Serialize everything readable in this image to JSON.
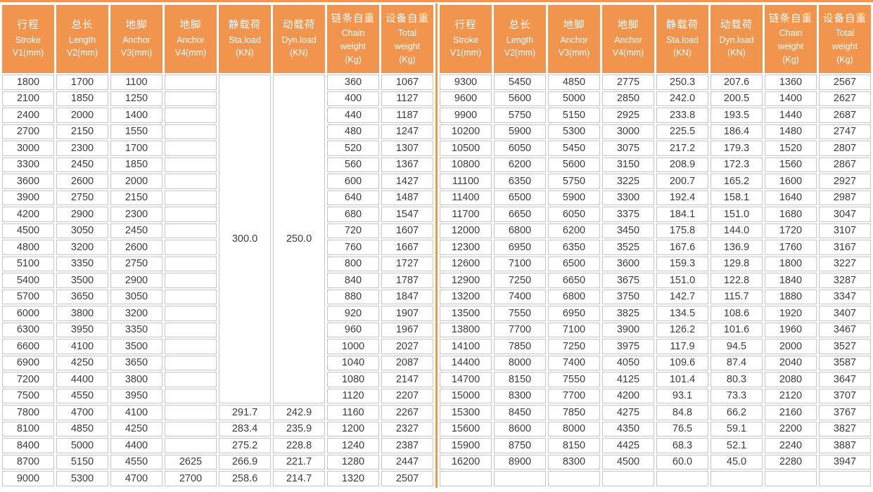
{
  "page": {
    "description": "Hoist equipment specification table, two side-by-side halves with identical column sets"
  },
  "colors": {
    "header_bg": "#F0944E",
    "divider": "#F19A47",
    "top_strip": "#F0944E",
    "cell_border": "#c4c4c4",
    "body_text": "#3d3a39",
    "header_text": "#ffffff",
    "page_bg": "#ffffff"
  },
  "columns": [
    {
      "lines": [
        "行程",
        "Stroke",
        "V1(mm)"
      ]
    },
    {
      "lines": [
        "总长",
        "Length",
        "V2(mm)"
      ]
    },
    {
      "lines": [
        "地脚",
        "Anchor",
        "V3(mm)"
      ]
    },
    {
      "lines": [
        "地脚",
        "Anchor",
        "V4(mm)"
      ]
    },
    {
      "lines": [
        "静载荷",
        "Sta.load",
        "(KN)"
      ]
    },
    {
      "lines": [
        "动载荷",
        "Dyn.load",
        "(KN)"
      ]
    },
    {
      "lines": [
        "链条自重",
        "Chain",
        "weight",
        "(Kg)"
      ]
    },
    {
      "lines": [
        "设备自重",
        "Total",
        "weight",
        "(Kg)"
      ]
    }
  ],
  "left_table": {
    "merged_cells": [
      {
        "col": 4,
        "start_row": 0,
        "row_span": 20,
        "value": "300.0"
      },
      {
        "col": 5,
        "start_row": 0,
        "row_span": 20,
        "value": "250.0"
      }
    ],
    "rows": [
      [
        "1800",
        "1700",
        "1100",
        "",
        null,
        null,
        "360",
        "1067"
      ],
      [
        "2100",
        "1850",
        "1250",
        "",
        null,
        null,
        "400",
        "1127"
      ],
      [
        "2400",
        "2000",
        "1400",
        "",
        null,
        null,
        "440",
        "1187"
      ],
      [
        "2700",
        "2150",
        "1550",
        "",
        null,
        null,
        "480",
        "1247"
      ],
      [
        "3000",
        "2300",
        "1700",
        "",
        null,
        null,
        "520",
        "1307"
      ],
      [
        "3300",
        "2450",
        "1850",
        "",
        null,
        null,
        "560",
        "1367"
      ],
      [
        "3600",
        "2600",
        "2000",
        "",
        null,
        null,
        "600",
        "1427"
      ],
      [
        "3900",
        "2750",
        "2150",
        "",
        null,
        null,
        "640",
        "1487"
      ],
      [
        "4200",
        "2900",
        "2300",
        "",
        null,
        null,
        "680",
        "1547"
      ],
      [
        "4500",
        "3050",
        "2450",
        "",
        null,
        null,
        "720",
        "1607"
      ],
      [
        "4800",
        "3200",
        "2600",
        "",
        null,
        null,
        "760",
        "1667"
      ],
      [
        "5100",
        "3350",
        "2750",
        "",
        null,
        null,
        "800",
        "1727"
      ],
      [
        "5400",
        "3500",
        "2900",
        "",
        null,
        null,
        "840",
        "1787"
      ],
      [
        "5700",
        "3650",
        "3050",
        "",
        null,
        null,
        "880",
        "1847"
      ],
      [
        "6000",
        "3800",
        "3200",
        "",
        null,
        null,
        "920",
        "1907"
      ],
      [
        "6300",
        "3950",
        "3350",
        "",
        null,
        null,
        "960",
        "1967"
      ],
      [
        "6600",
        "4100",
        "3500",
        "",
        null,
        null,
        "1000",
        "2027"
      ],
      [
        "6900",
        "4250",
        "3650",
        "",
        null,
        null,
        "1040",
        "2087"
      ],
      [
        "7200",
        "4400",
        "3800",
        "",
        null,
        null,
        "1080",
        "2147"
      ],
      [
        "7500",
        "4550",
        "3950",
        "",
        null,
        null,
        "1120",
        "2207"
      ],
      [
        "7800",
        "4700",
        "4100",
        "",
        "291.7",
        "242.9",
        "1160",
        "2267"
      ],
      [
        "8100",
        "4850",
        "4250",
        "",
        "283.4",
        "235.9",
        "1200",
        "2327"
      ],
      [
        "8400",
        "5000",
        "4400",
        "",
        "275.2",
        "228.8",
        "1240",
        "2387"
      ],
      [
        "8700",
        "5150",
        "4550",
        "2625",
        "266.9",
        "221.7",
        "1280",
        "2447"
      ],
      [
        "9000",
        "5300",
        "4700",
        "2700",
        "258.6",
        "214.7",
        "1320",
        "2507"
      ]
    ]
  },
  "right_table": {
    "merged_cells": [],
    "rows": [
      [
        "9300",
        "5450",
        "4850",
        "2775",
        "250.3",
        "207.6",
        "1360",
        "2567"
      ],
      [
        "9600",
        "5600",
        "5000",
        "2850",
        "242.0",
        "200.5",
        "1400",
        "2627"
      ],
      [
        "9900",
        "5750",
        "5150",
        "2925",
        "233.8",
        "193.5",
        "1440",
        "2687"
      ],
      [
        "10200",
        "5900",
        "5300",
        "3000",
        "225.5",
        "186.4",
        "1480",
        "2747"
      ],
      [
        "10500",
        "6050",
        "5450",
        "3075",
        "217.2",
        "179.3",
        "1520",
        "2807"
      ],
      [
        "10800",
        "6200",
        "5600",
        "3150",
        "208.9",
        "172.3",
        "1560",
        "2867"
      ],
      [
        "11100",
        "6350",
        "5750",
        "3225",
        "200.7",
        "165.2",
        "1600",
        "2927"
      ],
      [
        "11400",
        "6500",
        "5900",
        "3300",
        "192.4",
        "158.1",
        "1640",
        "2987"
      ],
      [
        "11700",
        "6650",
        "6050",
        "3375",
        "184.1",
        "151.0",
        "1680",
        "3047"
      ],
      [
        "12000",
        "6800",
        "6200",
        "3450",
        "175.8",
        "144.0",
        "1720",
        "3107"
      ],
      [
        "12300",
        "6950",
        "6350",
        "3525",
        "167.6",
        "136.9",
        "1760",
        "3167"
      ],
      [
        "12600",
        "7100",
        "6500",
        "3600",
        "159.3",
        "129.8",
        "1800",
        "3227"
      ],
      [
        "12900",
        "7250",
        "6650",
        "3675",
        "151.0",
        "122.8",
        "1840",
        "3287"
      ],
      [
        "13200",
        "7400",
        "6800",
        "3750",
        "142.7",
        "115.7",
        "1880",
        "3347"
      ],
      [
        "13500",
        "7550",
        "6950",
        "3825",
        "134.5",
        "108.6",
        "1920",
        "3407"
      ],
      [
        "13800",
        "7700",
        "7100",
        "3900",
        "126.2",
        "101.6",
        "1960",
        "3467"
      ],
      [
        "14100",
        "7850",
        "7250",
        "3975",
        "117.9",
        "94.5",
        "2000",
        "3527"
      ],
      [
        "14400",
        "8000",
        "7400",
        "4050",
        "109.6",
        "87.4",
        "2040",
        "3587"
      ],
      [
        "14700",
        "8150",
        "7550",
        "4125",
        "101.4",
        "80.3",
        "2080",
        "3647"
      ],
      [
        "15000",
        "8300",
        "7700",
        "4200",
        "93.1",
        "73.3",
        "2120",
        "3707"
      ],
      [
        "15300",
        "8450",
        "7850",
        "4275",
        "84.8",
        "66.2",
        "2160",
        "3767"
      ],
      [
        "15600",
        "8600",
        "8000",
        "4350",
        "76.5",
        "59.1",
        "2200",
        "3827"
      ],
      [
        "15900",
        "8750",
        "8150",
        "4425",
        "68.3",
        "52.1",
        "2240",
        "3887"
      ],
      [
        "16200",
        "8900",
        "8300",
        "4500",
        "60.0",
        "45.0",
        "2280",
        "3947"
      ],
      [
        "",
        "",
        "",
        "",
        "",
        "",
        "",
        ""
      ]
    ]
  }
}
